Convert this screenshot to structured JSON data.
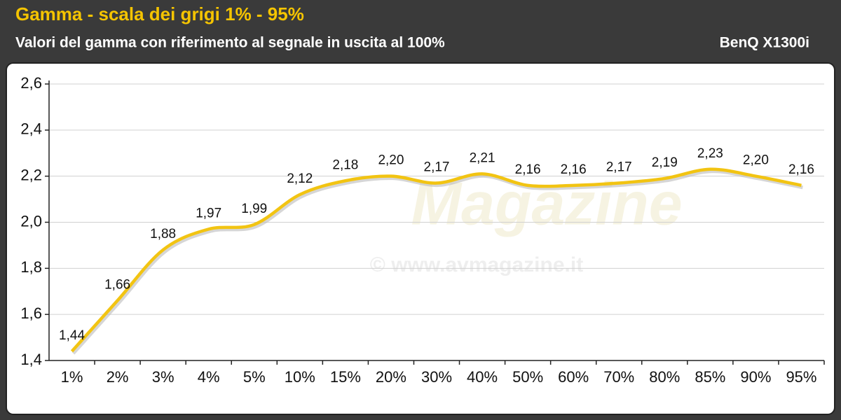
{
  "chart_data": {
    "type": "line",
    "title": "Gamma - scala dei grigi 1% - 95%",
    "subtitle": "Valori del gamma con riferimento al segnale in uscita al 100%",
    "brand": "BenQ X1300i",
    "watermark": [
      "Magazine",
      "© www.avmagazine.it"
    ],
    "categories": [
      "1%",
      "2%",
      "3%",
      "4%",
      "5%",
      "10%",
      "15%",
      "20%",
      "30%",
      "40%",
      "50%",
      "60%",
      "70%",
      "80%",
      "85%",
      "90%",
      "95%"
    ],
    "series": [
      {
        "color": "#f2c412",
        "values": [
          1.44,
          1.66,
          1.88,
          1.97,
          1.99,
          2.12,
          2.18,
          2.2,
          2.17,
          2.21,
          2.16,
          2.16,
          2.17,
          2.19,
          2.23,
          2.2,
          2.16
        ],
        "value_labels": [
          "1,44",
          "1,66",
          "1,88",
          "1,97",
          "1,99",
          "2,12",
          "2,18",
          "2,20",
          "2,17",
          "2,21",
          "2,16",
          "2,16",
          "2,17",
          "2,19",
          "2,23",
          "2,20",
          "2,16"
        ]
      }
    ],
    "ylim": [
      1.4,
      2.6
    ],
    "yticks": [
      {
        "value": 1.4,
        "label": "1,4"
      },
      {
        "value": 1.6,
        "label": "1,6"
      },
      {
        "value": 1.8,
        "label": "1,8"
      },
      {
        "value": 2.0,
        "label": "2,0"
      },
      {
        "value": 2.2,
        "label": "2,2"
      },
      {
        "value": 2.4,
        "label": "2,4"
      },
      {
        "value": 2.6,
        "label": "2,6"
      }
    ],
    "grid": true
  }
}
